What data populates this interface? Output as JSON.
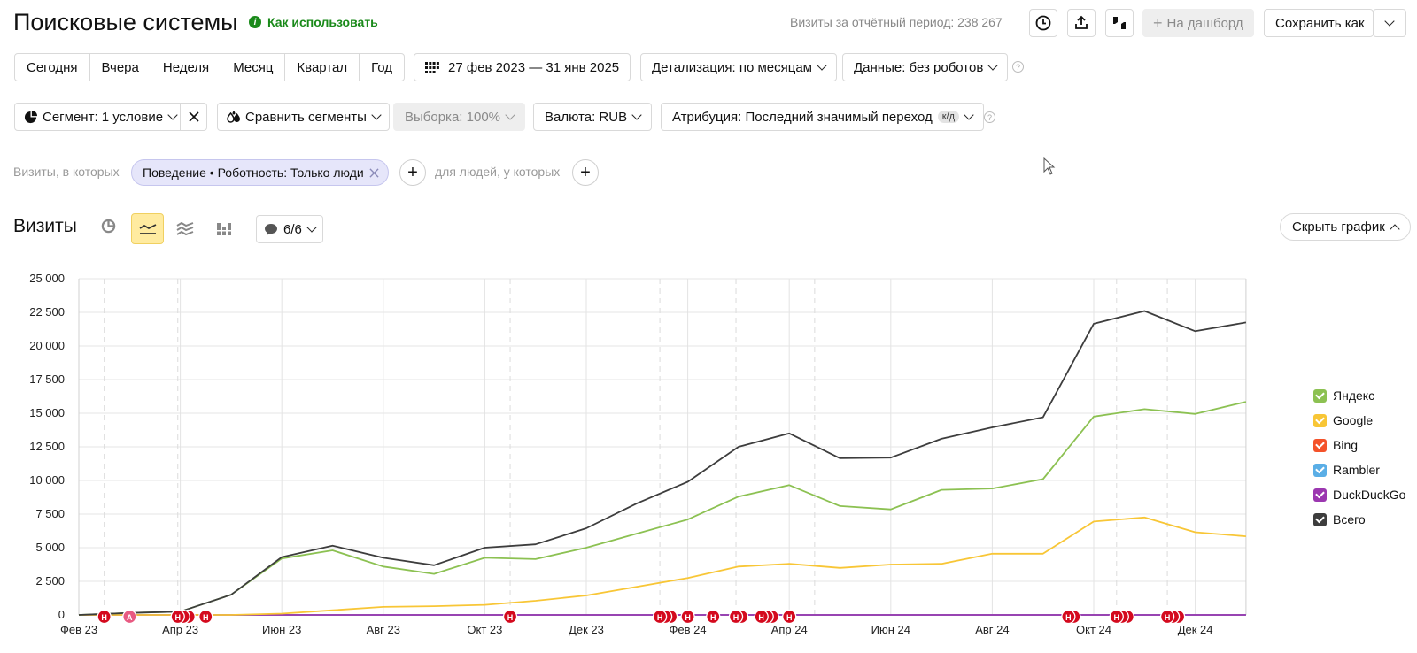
{
  "header": {
    "title": "Поисковые системы",
    "how_to_use": "Как использовать",
    "visits_summary": "Визиты за отчётный период: 238 267",
    "dashboard_label": "На дашборд",
    "save_as_label": "Сохранить как"
  },
  "period_tabs": [
    "Сегодня",
    "Вчера",
    "Неделя",
    "Месяц",
    "Квартал",
    "Год"
  ],
  "date_range": "27 фев 2023 — 31 янв 2025",
  "detail_label": "Детализация: по месяцам",
  "data_label": "Данные: без роботов",
  "segment_label": "Сегмент: 1 условие",
  "compare_label": "Сравнить сегменты",
  "sample_label": "Выборка: 100%",
  "currency_label": "Валюта: RUB",
  "attribution_label": "Атрибуция: Последний значимый переход",
  "attribution_badge": "к/д",
  "filter": {
    "visits_where": "Визиты, в которых",
    "chip": "Поведение • Роботность: Только люди",
    "for_people": "для людей, у которых"
  },
  "chart_header": {
    "title": "Визиты",
    "annotations_label": "6/6",
    "hide_chart": "Скрыть график"
  },
  "colors": {
    "yandex": "#8cc152",
    "google": "#f8c636",
    "bing": "#f4522a",
    "rambler": "#5aaee6",
    "duckduckgo": "#9b37b0",
    "total": "#3d3d3d",
    "marker_red": "#d40a1e",
    "marker_pink": "#e85a82",
    "accent_green": "#1a8a1a"
  },
  "chart_data": {
    "type": "line",
    "x": [
      "2023-02",
      "2023-03",
      "2023-04",
      "2023-05",
      "2023-06",
      "2023-07",
      "2023-08",
      "2023-09",
      "2023-10",
      "2023-11",
      "2023-12",
      "2024-01",
      "2024-02",
      "2024-03",
      "2024-04",
      "2024-05",
      "2024-06",
      "2024-07",
      "2024-08",
      "2024-09",
      "2024-10",
      "2024-11",
      "2024-12",
      "2025-01"
    ],
    "x_tick_labels": [
      "Фев 23",
      "Апр 23",
      "Июн 23",
      "Авг 23",
      "Окт 23",
      "Дек 23",
      "Фев 24",
      "Апр 24",
      "Июн 24",
      "Авг 24",
      "Окт 24",
      "Дек 24"
    ],
    "y_tick_labels": [
      "0",
      "2 500",
      "5 000",
      "7 500",
      "10 000",
      "12 500",
      "15 000",
      "17 500",
      "20 000",
      "22 500",
      "25 000"
    ],
    "ylim": [
      0,
      25000
    ],
    "grid": true,
    "legend_position": "right",
    "series": [
      {
        "name": "Яндекс",
        "color_key": "yandex",
        "values": [
          0,
          150,
          250,
          1500,
          4200,
          4800,
          3600,
          3050,
          4250,
          4150,
          5000,
          6050,
          7100,
          8800,
          9650,
          8100,
          7850,
          9300,
          9400,
          10100,
          14750,
          15300,
          14950,
          15850
        ]
      },
      {
        "name": "Google",
        "color_key": "google",
        "values": [
          0,
          0,
          0,
          0,
          100,
          350,
          600,
          650,
          750,
          1050,
          1450,
          2100,
          2750,
          3600,
          3800,
          3500,
          3750,
          3800,
          4550,
          4550,
          6950,
          7250,
          6150,
          5850
        ]
      },
      {
        "name": "Bing",
        "color_key": "bing",
        "values": [
          0,
          0,
          0,
          0,
          0,
          0,
          0,
          0,
          0,
          0,
          0,
          0,
          0,
          0,
          0,
          0,
          0,
          0,
          0,
          0,
          0,
          0,
          0,
          0
        ]
      },
      {
        "name": "Rambler",
        "color_key": "rambler",
        "values": [
          0,
          0,
          0,
          0,
          0,
          0,
          0,
          0,
          0,
          0,
          0,
          0,
          0,
          0,
          0,
          0,
          0,
          0,
          0,
          0,
          0,
          0,
          0,
          0
        ]
      },
      {
        "name": "DuckDuckGo",
        "color_key": "duckduckgo",
        "values": [
          0,
          0,
          0,
          0,
          0,
          0,
          0,
          0,
          0,
          0,
          0,
          0,
          0,
          0,
          0,
          0,
          0,
          0,
          0,
          0,
          0,
          0,
          0,
          0
        ]
      },
      {
        "name": "Всего",
        "color_key": "total",
        "values": [
          0,
          150,
          250,
          1500,
          4300,
          5150,
          4250,
          3700,
          5000,
          5250,
          6450,
          8300,
          9900,
          12500,
          13500,
          11650,
          11700,
          13100,
          13950,
          14700,
          21650,
          22600,
          21100,
          21750
        ]
      }
    ],
    "markers": [
      {
        "at": 0.5,
        "letter": "Н",
        "count": 1,
        "color_key": "marker_red"
      },
      {
        "at": 1.0,
        "letter": "А",
        "count": 1,
        "color_key": "marker_pink"
      },
      {
        "at": 1.95,
        "letter": "Н",
        "count": 3,
        "color_key": "marker_red"
      },
      {
        "at": 2.5,
        "letter": "Н",
        "count": 1,
        "color_key": "marker_red"
      },
      {
        "at": 8.5,
        "letter": "Н",
        "count": 1,
        "color_key": "marker_red"
      },
      {
        "at": 11.45,
        "letter": "Н",
        "count": 3,
        "color_key": "marker_red"
      },
      {
        "at": 12.0,
        "letter": "Н",
        "count": 1,
        "color_key": "marker_red"
      },
      {
        "at": 12.5,
        "letter": "Н",
        "count": 1,
        "color_key": "marker_red"
      },
      {
        "at": 12.95,
        "letter": "Н",
        "count": 2,
        "color_key": "marker_red"
      },
      {
        "at": 13.45,
        "letter": "Н",
        "count": 3,
        "color_key": "marker_red"
      },
      {
        "at": 14.0,
        "letter": "Н",
        "count": 1,
        "color_key": "marker_red"
      },
      {
        "at": 19.5,
        "letter": "Н",
        "count": 2,
        "color_key": "marker_red"
      },
      {
        "at": 20.45,
        "letter": "Н",
        "count": 3,
        "color_key": "marker_red"
      },
      {
        "at": 21.45,
        "letter": "Н",
        "count": 3,
        "color_key": "marker_red"
      }
    ]
  }
}
